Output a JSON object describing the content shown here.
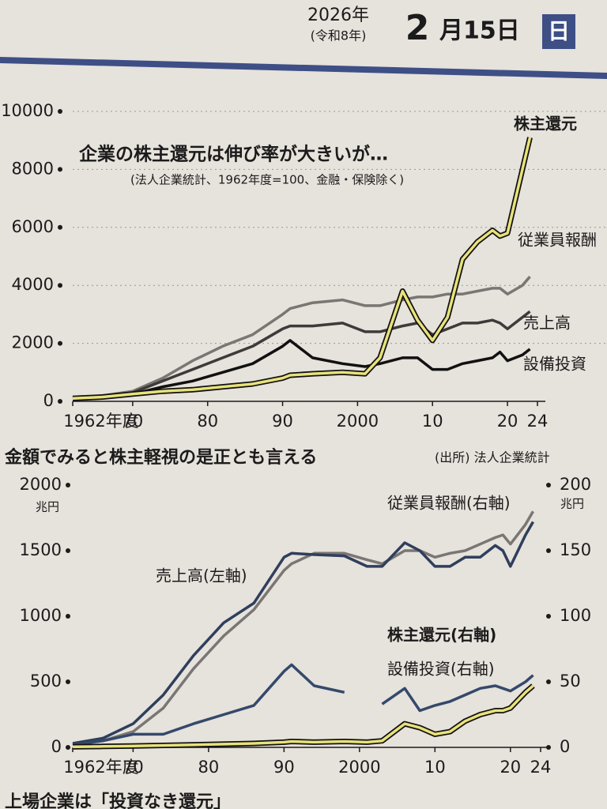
{
  "header": {
    "year": "2026年",
    "era": "(令和8年)",
    "month": "2",
    "day": "月15日",
    "weekday": "日"
  },
  "chart_data": [
    {
      "type": "line",
      "title": "企業の株主還元は伸び率が大きいが…",
      "subtitle": "(法人企業統計、1962年度=100、金融・保険除く)",
      "x": [
        1962,
        1966,
        1970,
        1974,
        1978,
        1982,
        1986,
        1990,
        1991,
        1994,
        1998,
        2001,
        2003,
        2006,
        2008,
        2010,
        2012,
        2014,
        2016,
        2018,
        2019,
        2020,
        2022,
        2023
      ],
      "xlim": [
        1962,
        2024
      ],
      "xticks": [
        {
          "value": 1962,
          "label": "1962年度"
        },
        {
          "value": 1970,
          "label": "70"
        },
        {
          "value": 1980,
          "label": "80"
        },
        {
          "value": 1990,
          "label": "90"
        },
        {
          "value": 2000,
          "label": "2000"
        },
        {
          "value": 2010,
          "label": "10"
        },
        {
          "value": 2020,
          "label": "20"
        },
        {
          "value": 2024,
          "label": "24"
        }
      ],
      "ylim": [
        0,
        10000
      ],
      "yticks": [
        0,
        2000,
        4000,
        6000,
        8000,
        10000
      ],
      "grid": true,
      "series": [
        {
          "name": "従業員報酬",
          "color": "#7a7673",
          "values": [
            100,
            200,
            350,
            800,
            1400,
            1900,
            2300,
            3000,
            3200,
            3400,
            3500,
            3300,
            3300,
            3500,
            3600,
            3600,
            3700,
            3700,
            3800,
            3900,
            3900,
            3700,
            4000,
            4300
          ]
        },
        {
          "name": "売上高",
          "color": "#3d3b3a",
          "values": [
            100,
            180,
            300,
            700,
            1100,
            1500,
            1900,
            2500,
            2600,
            2600,
            2700,
            2400,
            2400,
            2600,
            2700,
            2300,
            2500,
            2700,
            2700,
            2800,
            2700,
            2500,
            2900,
            3100
          ]
        },
        {
          "name": "設備投資",
          "color": "#111111",
          "values": [
            100,
            150,
            250,
            500,
            700,
            1000,
            1300,
            1900,
            2100,
            1500,
            1300,
            1200,
            1300,
            1500,
            1500,
            1100,
            1100,
            1300,
            1400,
            1500,
            1700,
            1400,
            1600,
            1800
          ]
        },
        {
          "name": "株主還元",
          "color": "#e8e27a",
          "values": [
            100,
            150,
            250,
            350,
            400,
            500,
            600,
            800,
            900,
            950,
            1000,
            950,
            1500,
            3800,
            2800,
            2100,
            2900,
            4900,
            5500,
            5900,
            5700,
            5800,
            8000,
            9100
          ]
        }
      ]
    },
    {
      "type": "line",
      "title": "金額でみると株主軽視の是正とも言える",
      "source": "(出所) 法人企業統計",
      "y_unit": "兆円",
      "y2_unit": "兆円",
      "x": [
        1962,
        1966,
        1970,
        1974,
        1978,
        1982,
        1986,
        1990,
        1991,
        1994,
        1998,
        2001,
        2003,
        2006,
        2008,
        2010,
        2012,
        2014,
        2016,
        2018,
        2019,
        2020,
        2022,
        2023
      ],
      "xlim": [
        1962,
        2024
      ],
      "xticks": [
        {
          "value": 1962,
          "label": "1962年度"
        },
        {
          "value": 1970,
          "label": "70"
        },
        {
          "value": 1980,
          "label": "80"
        },
        {
          "value": 1990,
          "label": "90"
        },
        {
          "value": 2000,
          "label": "2000"
        },
        {
          "value": 2010,
          "label": "10"
        },
        {
          "value": 2020,
          "label": "20"
        },
        {
          "value": 2024,
          "label": "24"
        }
      ],
      "ylim": [
        0,
        2000
      ],
      "yticks": [
        0,
        500,
        1000,
        1500,
        2000
      ],
      "y2lim": [
        0,
        200
      ],
      "y2ticks": [
        0,
        50,
        100,
        150,
        200
      ],
      "series": [
        {
          "name": "従業員報酬(右軸)",
          "color": "#7a7673",
          "axis": "y2",
          "values": [
            2,
            5,
            12,
            30,
            60,
            85,
            105,
            135,
            140,
            148,
            148,
            143,
            140,
            150,
            150,
            145,
            148,
            150,
            155,
            160,
            162,
            155,
            170,
            180
          ]
        },
        {
          "name": "売上高(左軸)",
          "color": "#2f3f5c",
          "values": [
            30,
            70,
            180,
            400,
            700,
            950,
            1100,
            1450,
            1480,
            1470,
            1460,
            1380,
            1380,
            1560,
            1500,
            1380,
            1380,
            1450,
            1450,
            1540,
            1500,
            1380,
            1620,
            1720
          ]
        },
        {
          "name": "設備投資(右軸)",
          "color": "#34496b",
          "axis": "y2",
          "values": [
            2,
            5,
            10,
            10,
            18,
            25,
            32,
            58,
            63,
            47,
            42,
            null,
            33,
            45,
            28,
            32,
            35,
            40,
            45,
            47,
            45,
            43,
            50,
            55
          ]
        },
        {
          "name": "株主還元(右軸)",
          "color": "#e8e27a",
          "axis": "y2",
          "values": [
            0.5,
            0.7,
            1,
            1.5,
            2,
            2.5,
            3,
            4,
            4.5,
            4,
            4.5,
            4,
            5,
            18,
            15,
            10,
            12,
            20,
            25,
            28,
            28,
            30,
            42,
            47
          ]
        }
      ]
    }
  ],
  "footer": "上場企業は「投資なき還元」"
}
